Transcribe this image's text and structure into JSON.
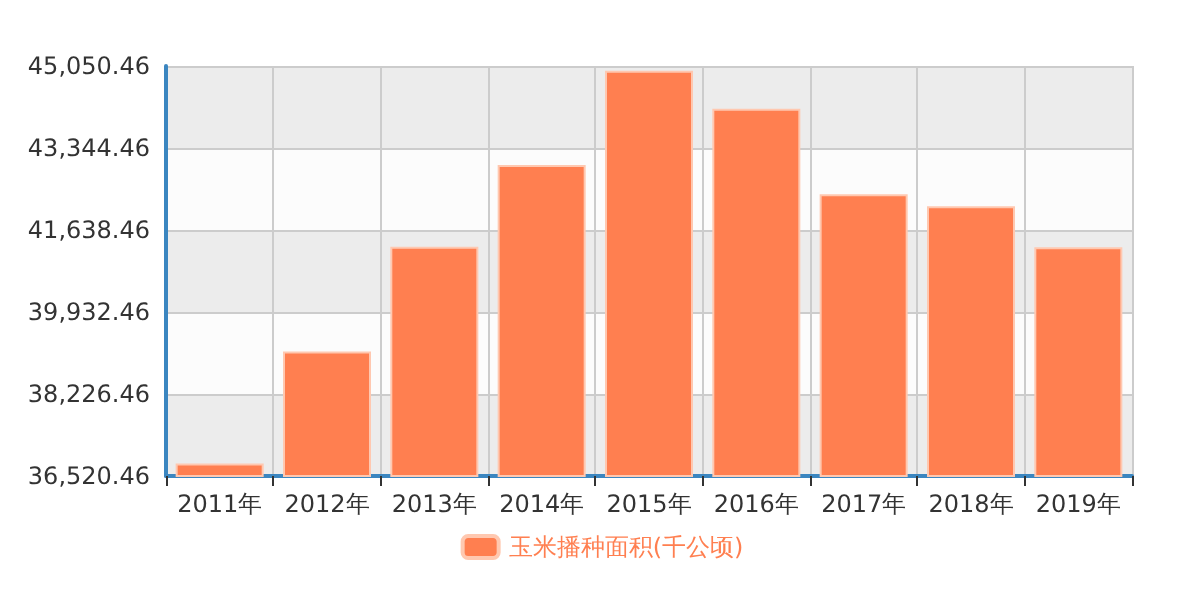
{
  "chart_data": {
    "type": "bar",
    "categories": [
      "2011年",
      "2012年",
      "2013年",
      "2014年",
      "2015年",
      "2016年",
      "2017年",
      "2018年",
      "2019年"
    ],
    "series": [
      {
        "name": "玉米播种面积(千公顷)",
        "color": "#ff7f50",
        "values": [
          36780,
          39110,
          41290,
          42990,
          44950,
          44160,
          42380,
          42130,
          41280
        ]
      }
    ],
    "ylim": [
      36520.46,
      45050.46
    ],
    "yticks": [
      {
        "value": 36520.46,
        "label": "36,520.46"
      },
      {
        "value": 38226.46,
        "label": "38,226.46"
      },
      {
        "value": 39932.46,
        "label": "39,932.46"
      },
      {
        "value": 41638.46,
        "label": "41,638.46"
      },
      {
        "value": 43344.46,
        "label": "43,344.46"
      },
      {
        "value": 45050.46,
        "label": "45,050.46"
      }
    ],
    "grid": true,
    "legend": "bottom"
  }
}
